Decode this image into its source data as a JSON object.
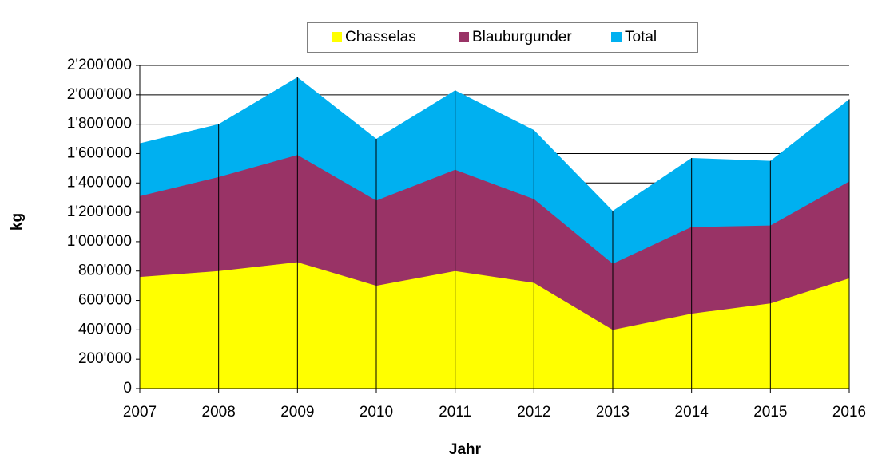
{
  "chart_data": {
    "type": "area",
    "x_label": "Jahr",
    "y_label": "kg",
    "categories": [
      "2007",
      "2008",
      "2009",
      "2010",
      "2011",
      "2012",
      "2013",
      "2014",
      "2015",
      "2016"
    ],
    "series": [
      {
        "name": "Chasselas",
        "color": "#ffff00",
        "values": [
          760000,
          800000,
          860000,
          700000,
          800000,
          720000,
          400000,
          510000,
          580000,
          750000
        ]
      },
      {
        "name": "Blauburgunder",
        "color": "#993366",
        "values": [
          1310000,
          1440000,
          1590000,
          1280000,
          1490000,
          1290000,
          850000,
          1100000,
          1110000,
          1410000
        ]
      },
      {
        "name": "Total",
        "color": "#00b0f0",
        "values": [
          1670000,
          1800000,
          2120000,
          1700000,
          2030000,
          1760000,
          1210000,
          1570000,
          1550000,
          1970000
        ]
      }
    ],
    "ylim": [
      0,
      2200000
    ],
    "yticks": [
      0,
      {
        "value": 200000,
        "label": "200'000"
      },
      {
        "value": 400000,
        "label": "400'000"
      },
      {
        "value": 600000,
        "label": "600'000"
      },
      {
        "value": 800000,
        "label": "800'000"
      },
      {
        "value": 1000000,
        "label": "1'000'000"
      },
      {
        "value": 1200000,
        "label": "1'200'000"
      },
      {
        "value": 1400000,
        "label": "1'400'000"
      },
      {
        "value": 1600000,
        "label": "1'600'000"
      },
      {
        "value": 1800000,
        "label": "1'800'000"
      },
      {
        "value": 2000000,
        "label": "2'000'000"
      },
      {
        "value": 2200000,
        "label": "2'200'000"
      }
    ],
    "grid": true,
    "legend": "top"
  }
}
